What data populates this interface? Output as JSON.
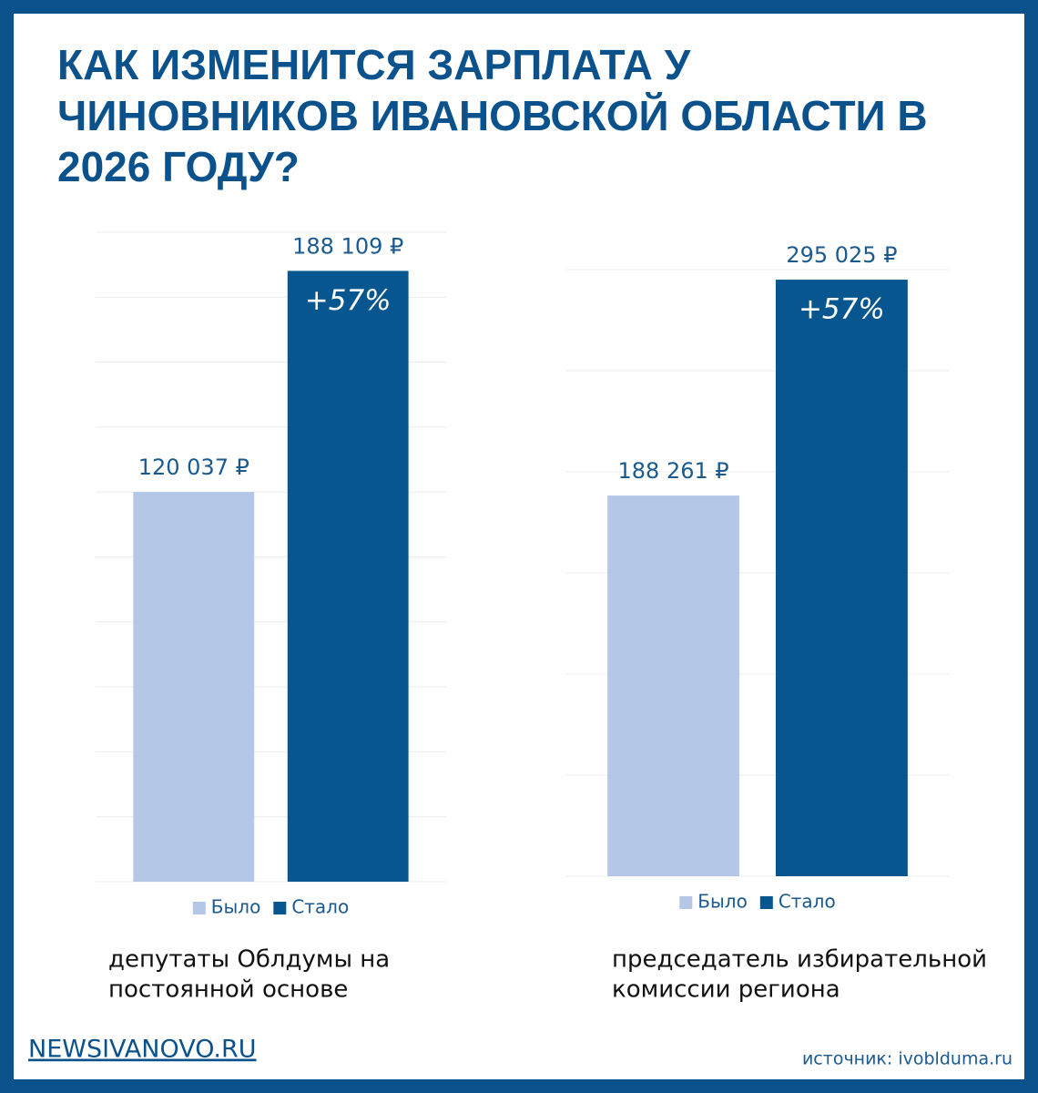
{
  "title": [
    "КАК ИЗМЕНИТСЯ ЗАРПЛАТА У",
    "ЧИНОВНИКОВ ИВАНОВСКОЙ ОБЛАСТИ В",
    "2026 ГОДУ?"
  ],
  "chart_data": [
    {
      "type": "bar",
      "ylim": [
        0,
        200000
      ],
      "yticks": [
        0,
        20000,
        40000,
        60000,
        80000,
        100000,
        120000,
        140000,
        160000,
        180000,
        200000
      ],
      "grid": true,
      "series": [
        {
          "name": "Было",
          "color": "#b4c7e7",
          "values": [
            120037
          ],
          "value_labels": [
            "120 037 ₽"
          ]
        },
        {
          "name": "Стало",
          "color": "#08568f",
          "values": [
            188109
          ],
          "value_labels": [
            "188 109 ₽"
          ]
        }
      ],
      "annotation": "+57%",
      "caption": [
        "депутаты Облдумы на",
        "постоянной основе"
      ]
    },
    {
      "type": "bar",
      "ylim": [
        0,
        300000
      ],
      "yticks": [
        0,
        50000,
        100000,
        150000,
        200000,
        250000,
        300000
      ],
      "grid": true,
      "series": [
        {
          "name": "Было",
          "color": "#b4c7e7",
          "values": [
            188261
          ],
          "value_labels": [
            "188 261 ₽"
          ]
        },
        {
          "name": "Стало",
          "color": "#08568f",
          "values": [
            295025
          ],
          "value_labels": [
            "295 025 ₽"
          ]
        }
      ],
      "annotation": "+57%",
      "caption": [
        "председатель избирательной",
        "комиссии региона"
      ]
    }
  ],
  "footer": {
    "site": "NEWSIVANOVO.RU",
    "source": "источник: ivobldumа.ru"
  }
}
